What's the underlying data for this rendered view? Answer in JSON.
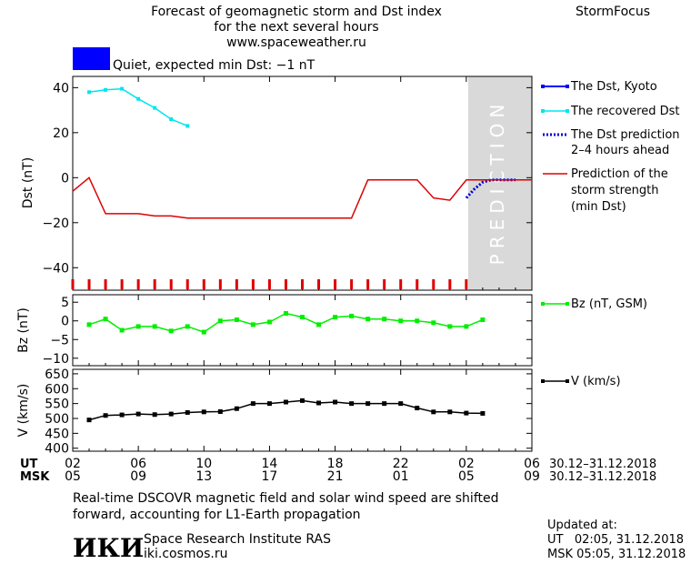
{
  "header": {
    "title_lines": [
      "Forecast of geomagnetic storm and Dst index",
      "for the next several hours",
      "www.spaceweather.ru"
    ],
    "brand": "StormFocus"
  },
  "status": {
    "text": "Quiet, expected min Dst: −1 nT",
    "swatch_color": "#0000ff"
  },
  "prediction_label": "PREDICTION",
  "colors": {
    "dst_kyoto": "#0000ff",
    "recovered": "#00e5ee",
    "forecast": "#0000cc",
    "storm": "#dd0000",
    "bz": "#00ee00",
    "v": "#000000",
    "prediction_bg": "#d9d9d9"
  },
  "footer": {
    "note_lines": [
      "Real-time DSCOVR magnetic field and solar wind speed are shifted",
      "forward, accounting for L1-Earth propagation"
    ],
    "org_logo": "ИКИ",
    "org_lines": [
      "Space Research Institute RAS",
      "iki.cosmos.ru"
    ],
    "updated_title": "Updated at:",
    "updated_lines": [
      "UT   02:05, 31.12.2018",
      "MSK 05:05, 31.12.2018"
    ]
  },
  "chart_data": {
    "type": "line",
    "time_axis": {
      "range_hours": [
        0,
        28
      ],
      "ticks_hours": [
        0,
        4,
        8,
        12,
        16,
        20,
        24,
        28
      ],
      "ut_label": "UT",
      "msk_label": "MSK",
      "ut_ticks": [
        "02",
        "06",
        "10",
        "14",
        "18",
        "22",
        "02",
        "06"
      ],
      "msk_ticks": [
        "05",
        "09",
        "13",
        "17",
        "21",
        "01",
        "05",
        "09"
      ],
      "ut_range_text": "30.12–31.12.2018",
      "msk_range_text": "30.12–31.12.2018",
      "prediction_start_hour": 24
    },
    "panels": [
      {
        "id": "dst",
        "ylabel": "Dst (nT)",
        "ylim": [
          -50,
          45
        ],
        "yticks": [
          40,
          20,
          0,
          -20,
          -40
        ],
        "series": [
          {
            "name": "The Dst, Kyoto",
            "style": "line-square",
            "x": [],
            "y": []
          },
          {
            "name": "The recovered Dst",
            "style": "line-square",
            "x": [
              1,
              2,
              3,
              4,
              5,
              6,
              7
            ],
            "y": [
              38,
              39,
              39.5,
              35,
              31,
              26,
              23
            ]
          },
          {
            "name": "The Dst prediction 2–4 hours ahead",
            "style": "dotted",
            "x": [
              24,
              24.5,
              25,
              25.5,
              26,
              26.5,
              27
            ],
            "y": [
              -9,
              -5,
              -2,
              -1,
              -1,
              -1,
              -1
            ]
          },
          {
            "name": "Prediction of the storm strength (min Dst)",
            "style": "line",
            "x": [
              0,
              1,
              2,
              4,
              5,
              6,
              7,
              17,
              18,
              20,
              21,
              22,
              23,
              24,
              28
            ],
            "y": [
              -6,
              0,
              -16,
              -16,
              -17,
              -17,
              -18,
              -18,
              -1,
              -1,
              -1,
              -9,
              -10,
              -1,
              -1
            ]
          }
        ],
        "legend": [
          "The Dst, Kyoto",
          "The recovered Dst",
          "The Dst prediction",
          "2–4 hours ahead",
          "Prediction of the",
          "storm strength",
          "(min Dst)"
        ]
      },
      {
        "id": "bz",
        "ylabel": "Bz (nT)",
        "ylim": [
          -12,
          7
        ],
        "yticks": [
          5,
          0,
          -5,
          -10
        ],
        "series": [
          {
            "name": "Bz (nT, GSM)",
            "x": [
              1,
              2,
              3,
              4,
              5,
              6,
              7,
              8,
              9,
              10,
              11,
              12,
              13,
              14,
              15,
              16,
              17,
              18,
              19,
              20,
              21,
              22,
              23,
              24,
              25
            ],
            "y": [
              -1,
              0.5,
              -2.5,
              -1.5,
              -1.5,
              -2.7,
              -1.5,
              -3,
              0,
              0.3,
              -1,
              -0.3,
              2,
              1,
              -1,
              1,
              1.3,
              0.5,
              0.5,
              0,
              0,
              -0.5,
              -1.5,
              -1.5,
              0.3
            ]
          }
        ]
      },
      {
        "id": "v",
        "ylabel": "V (km/s)",
        "ylim": [
          390,
          665
        ],
        "yticks": [
          650,
          600,
          550,
          500,
          450,
          400
        ],
        "series": [
          {
            "name": "V (km/s)",
            "x": [
              1,
              2,
              3,
              4,
              5,
              6,
              7,
              8,
              9,
              10,
              11,
              12,
              13,
              14,
              15,
              16,
              17,
              18,
              19,
              20,
              21,
              22,
              23,
              24,
              25
            ],
            "y": [
              495,
              510,
              512,
              515,
              513,
              515,
              520,
              522,
              523,
              533,
              550,
              550,
              555,
              560,
              552,
              555,
              550,
              550,
              550,
              550,
              535,
              522,
              522,
              518,
              517
            ]
          }
        ]
      }
    ]
  }
}
